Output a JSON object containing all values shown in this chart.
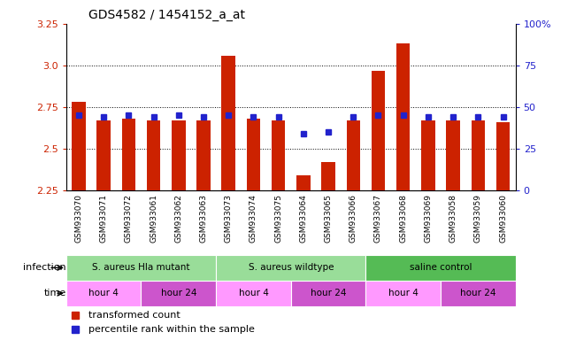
{
  "title": "GDS4582 / 1454152_a_at",
  "samples": [
    "GSM933070",
    "GSM933071",
    "GSM933072",
    "GSM933061",
    "GSM933062",
    "GSM933063",
    "GSM933073",
    "GSM933074",
    "GSM933075",
    "GSM933064",
    "GSM933065",
    "GSM933066",
    "GSM933067",
    "GSM933068",
    "GSM933069",
    "GSM933058",
    "GSM933059",
    "GSM933060"
  ],
  "transformed_count": [
    2.78,
    2.67,
    2.68,
    2.67,
    2.67,
    2.67,
    3.06,
    2.68,
    2.67,
    2.34,
    2.42,
    2.67,
    2.97,
    3.13,
    2.67,
    2.67,
    2.67,
    2.66
  ],
  "percentile_rank": [
    45,
    44,
    45,
    44,
    45,
    44,
    45,
    44,
    44,
    34,
    35,
    44,
    45,
    45,
    44,
    44,
    44,
    44
  ],
  "ylim_left": [
    2.25,
    3.25
  ],
  "ylim_right": [
    0,
    100
  ],
  "yticks_left": [
    2.25,
    2.5,
    2.75,
    3.0,
    3.25
  ],
  "yticks_right": [
    0,
    25,
    50,
    75,
    100
  ],
  "ytick_labels_right": [
    "0",
    "25",
    "50",
    "75",
    "100%"
  ],
  "bar_color": "#cc2200",
  "percentile_color": "#2222cc",
  "infection_groups": [
    {
      "label": "S. aureus Hla mutant",
      "start": 0,
      "end": 6,
      "color": "#99dd99"
    },
    {
      "label": "S. aureus wildtype",
      "start": 6,
      "end": 12,
      "color": "#99dd99"
    },
    {
      "label": "saline control",
      "start": 12,
      "end": 18,
      "color": "#55bb55"
    }
  ],
  "time_groups": [
    {
      "label": "hour 4",
      "start": 0,
      "end": 3,
      "color": "#ff99ff"
    },
    {
      "label": "hour 24",
      "start": 3,
      "end": 6,
      "color": "#cc55cc"
    },
    {
      "label": "hour 4",
      "start": 6,
      "end": 9,
      "color": "#ff99ff"
    },
    {
      "label": "hour 24",
      "start": 9,
      "end": 12,
      "color": "#cc55cc"
    },
    {
      "label": "hour 4",
      "start": 12,
      "end": 15,
      "color": "#ff99ff"
    },
    {
      "label": "hour 24",
      "start": 15,
      "end": 18,
      "color": "#cc55cc"
    }
  ],
  "ylabel_left_color": "#cc2200",
  "ylabel_right_color": "#2222cc",
  "bar_width": 0.55,
  "infection_label": "infection",
  "time_label": "time",
  "xtick_bg_color": "#cccccc"
}
